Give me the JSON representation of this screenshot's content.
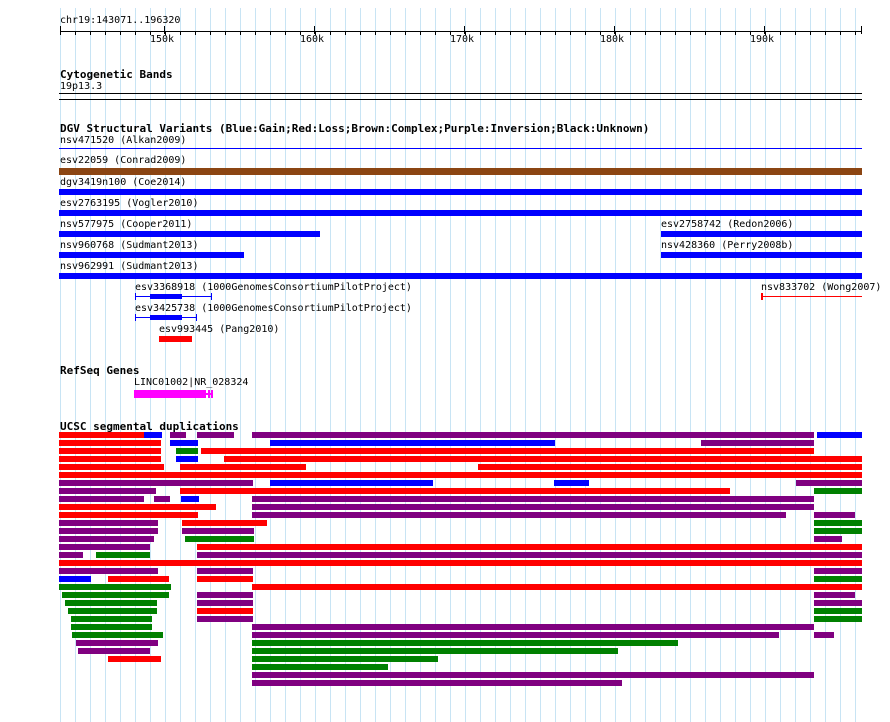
{
  "ruler": {
    "position": "chr19:143071..196320",
    "ticks": [
      "150k",
      "160k",
      "170k",
      "180k",
      "190k"
    ]
  },
  "cytobands": {
    "title": "Cytogenetic Bands",
    "band": "19p13.3"
  },
  "dgv": {
    "title": "DGV Structural Variants (Blue:Gain;Red:Loss;Brown:Complex;Purple:Inversion;Black:Unknown)",
    "legend_colors": {
      "gain": "#0000ff",
      "loss": "#ff0000",
      "complex": "#8b4513",
      "inversion": "#800080",
      "unknown": "#000000"
    },
    "features": [
      {
        "name": "nsv471520 (Alkan2009)",
        "color": "#0000ff",
        "track": "thin-line"
      },
      {
        "name": "esv22059 (Conrad2009)",
        "color": "#8b4513"
      },
      {
        "name": "dgv3419n100 (Coe2014)",
        "color": "#0000ff"
      },
      {
        "name": "esv2763195 (Vogler2010)",
        "color": "#0000ff"
      },
      {
        "name": "nsv577975 (Cooper2011)",
        "color": "#0000ff"
      },
      {
        "name": "esv2758742 (Redon2006)",
        "color": "#0000ff"
      },
      {
        "name": "nsv960768 (Sudmant2013)",
        "color": "#0000ff"
      },
      {
        "name": "nsv428360 (Perry2008b)",
        "color": "#0000ff"
      },
      {
        "name": "nsv962991 (Sudmant2013)",
        "color": "#0000ff"
      },
      {
        "name": "esv3368918 (1000GenomesConsortiumPilotProject)",
        "color": "#0000ff"
      },
      {
        "name": "nsv833702 (Wong2007)",
        "color": "#ff0000"
      },
      {
        "name": "esv3425738 (1000GenomesConsortiumPilotProject)",
        "color": "#0000ff"
      },
      {
        "name": "esv993445 (Pang2010)",
        "color": "#ff0000"
      }
    ]
  },
  "refseq": {
    "title": "RefSeq Genes",
    "gene": "LINC01002|NR_028324",
    "color": "#ff00ff"
  },
  "segdups": {
    "title": "UCSC segmental duplications",
    "palette": {
      "red": "#ff0000",
      "blue": "#0000ff",
      "purple": "#800080",
      "green": "#008000"
    }
  }
}
